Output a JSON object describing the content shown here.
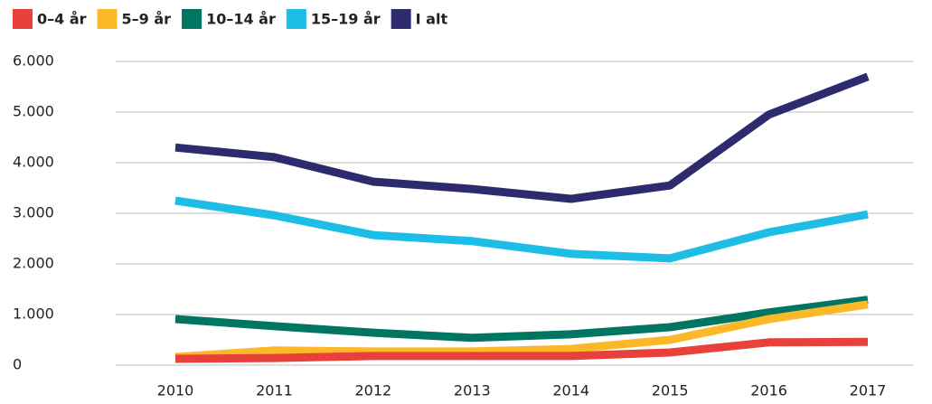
{
  "chart_data": {
    "type": "line",
    "categories": [
      "2010",
      "2011",
      "2012",
      "2013",
      "2014",
      "2015",
      "2016",
      "2017"
    ],
    "series": [
      {
        "name": "0–4 år",
        "color": "#e8413c",
        "values": [
          125,
          140,
          180,
          180,
          180,
          250,
          450,
          460
        ]
      },
      {
        "name": "5–9 år",
        "color": "#fbb829",
        "values": [
          160,
          290,
          270,
          270,
          320,
          500,
          910,
          1200
        ]
      },
      {
        "name": "10–14 år",
        "color": "#007561",
        "values": [
          910,
          770,
          640,
          540,
          610,
          750,
          1040,
          1290
        ]
      },
      {
        "name": "15–19 år",
        "color": "#1dbde6",
        "values": [
          3250,
          2960,
          2570,
          2450,
          2200,
          2110,
          2625,
          2980
        ]
      },
      {
        "name": "I alt",
        "color": "#2e2a6e",
        "values": [
          4300,
          4110,
          3625,
          3480,
          3285,
          3550,
          4950,
          5700
        ]
      }
    ],
    "ylim": [
      0,
      6000
    ],
    "yticks": [
      0,
      {
        "value": 1000,
        "label": "1.000"
      },
      {
        "value": 2000,
        "label": "2.000"
      },
      {
        "value": 3000,
        "label": "3.000"
      },
      {
        "value": 4000,
        "label": "4.000"
      },
      {
        "value": 5000,
        "label": "5.000"
      },
      {
        "value": 6000,
        "label": "6.000"
      }
    ],
    "grid": true
  }
}
